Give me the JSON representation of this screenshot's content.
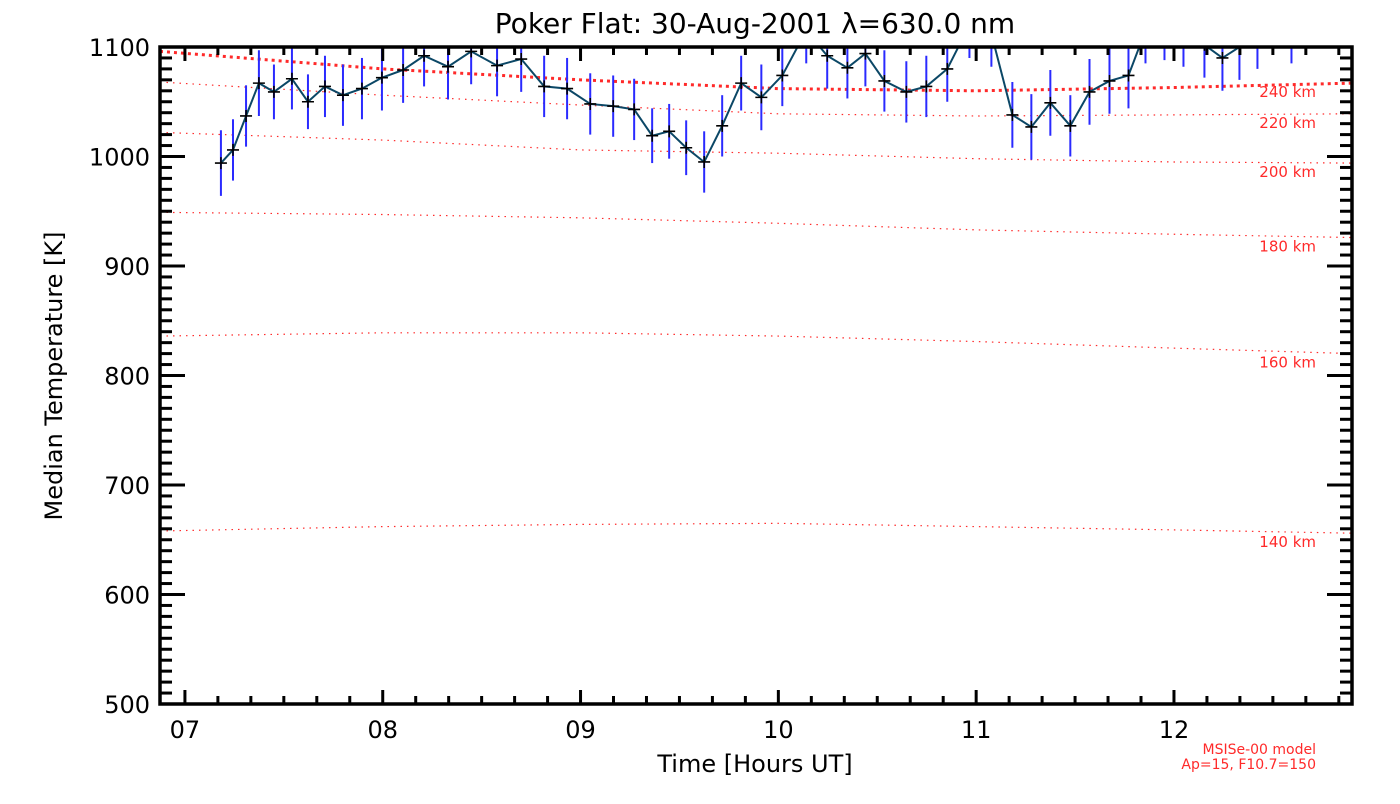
{
  "chart_data": {
    "type": "line",
    "title": "Poker Flat: 30-Aug-2001 λ=630.0 nm",
    "xlabel": "Time [Hours UT]",
    "ylabel": "Median Temperature [K]",
    "xlim": [
      6.874,
      12.9
    ],
    "ylim": [
      500,
      1100
    ],
    "x_ticks": [
      7,
      8,
      9,
      10,
      11,
      12
    ],
    "x_tick_labels": [
      "07",
      "08",
      "09",
      "10",
      "11",
      "12"
    ],
    "y_ticks": [
      500,
      600,
      700,
      800,
      900,
      1000,
      1100
    ],
    "y_tick_labels": [
      "500",
      "600",
      "700",
      "800",
      "900",
      "1000",
      "1100"
    ],
    "grid": false,
    "series": [
      {
        "name": "Median Temperature",
        "color": "#0b4766",
        "error_color": "#2a2aff",
        "x": [
          7.182,
          7.243,
          7.309,
          7.374,
          7.45,
          7.541,
          7.622,
          7.708,
          7.799,
          7.895,
          7.996,
          8.103,
          8.209,
          8.33,
          8.447,
          8.578,
          8.7,
          8.816,
          8.932,
          9.049,
          9.165,
          9.271,
          9.362,
          9.448,
          9.534,
          9.625,
          9.716,
          9.812,
          9.914,
          10.02,
          10.141,
          10.247,
          10.349,
          10.44,
          10.536,
          10.647,
          10.748,
          10.854,
          10.966,
          11.077,
          11.183,
          11.279,
          11.375,
          11.476,
          11.573,
          11.674,
          11.77,
          11.856,
          11.952,
          12.048,
          12.154,
          12.245,
          12.331,
          12.422,
          12.594
        ],
        "y": [
          994,
          1006,
          1037,
          1067,
          1059,
          1071,
          1050,
          1064,
          1056,
          1062,
          1072,
          1079,
          1092,
          1082,
          1096,
          1083,
          1089,
          1064,
          1062,
          1048,
          1046,
          1043,
          1019,
          1023,
          1008,
          995,
          1028,
          1067,
          1054,
          1074,
          1115,
          1092,
          1081,
          1094,
          1069,
          1059,
          1064,
          1080,
          1120,
          1112,
          1038,
          1027,
          1049,
          1028,
          1059,
          1069,
          1074,
          1115,
          1118,
          1112,
          1102,
          1090,
          1100,
          1110,
          1115
        ],
        "error": [
          30,
          28,
          28,
          30,
          25,
          28,
          25,
          28,
          28,
          28,
          30,
          30,
          28,
          30,
          30,
          28,
          30,
          28,
          28,
          28,
          28,
          28,
          25,
          25,
          25,
          28,
          28,
          25,
          30,
          28,
          30,
          30,
          28,
          30,
          28,
          28,
          28,
          30,
          30,
          30,
          30,
          30,
          30,
          28,
          30,
          30,
          30,
          30,
          30,
          30,
          30,
          30,
          30,
          30,
          30
        ]
      }
    ],
    "model_curves": {
      "color": "#ff2a2a",
      "x": [
        6.874,
        8,
        9,
        10,
        11,
        12,
        12.9
      ],
      "curves": [
        {
          "label": "240 km",
          "y": [
            1096,
            1080,
            1070,
            1062,
            1060,
            1063,
            1067
          ],
          "emphasis": true
        },
        {
          "label": "220 km",
          "y": [
            1068,
            1056,
            1047,
            1039,
            1037,
            1038,
            1039
          ]
        },
        {
          "label": "200 km",
          "y": [
            1022,
            1015,
            1006,
            1003,
            998,
            995,
            994
          ]
        },
        {
          "label": "180 km",
          "y": [
            949,
            947,
            944,
            939,
            933,
            929,
            926
          ]
        },
        {
          "label": "160 km",
          "y": [
            836,
            839,
            839,
            836,
            831,
            825,
            820
          ]
        },
        {
          "label": "140 km",
          "y": [
            658,
            662,
            664,
            665,
            662,
            659,
            656
          ]
        }
      ]
    },
    "annotations": [
      "MSISe-00 model",
      "Ap=15, F10.7=150"
    ]
  }
}
